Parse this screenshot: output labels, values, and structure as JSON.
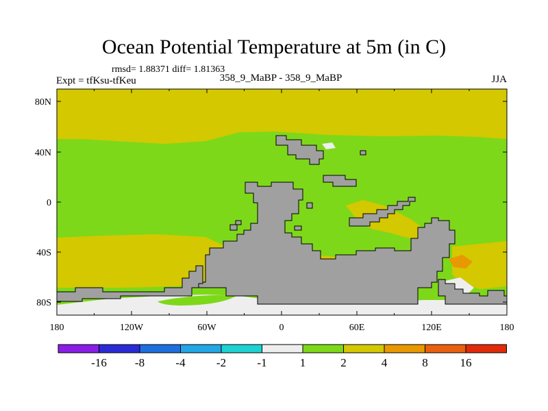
{
  "plot": {
    "title": "Ocean Potential Temperature at 5m (in C)",
    "stats": "rmsd= 1.88371 diff= 1.81363",
    "experiment": "Expt = tfKsu-tfKeu",
    "cases": "358_9_MaBP - 358_9_MaBP",
    "season": "JJA"
  },
  "axes": {
    "x_ticks": [
      "180",
      "120W",
      "60W",
      "0",
      "60E",
      "120E",
      "180"
    ],
    "y_ticks": [
      "80N",
      "40N",
      "0",
      "40S",
      "80S"
    ]
  },
  "colorbar": {
    "labels": [
      "-16",
      "-8",
      "-4",
      "-2",
      "-1",
      "1",
      "2",
      "4",
      "8",
      "16"
    ],
    "colors": [
      "#8a1ee6",
      "#2a2ad6",
      "#1e6ee0",
      "#22a6e6",
      "#1ed2d2",
      "#eeeeee",
      "#7ed81a",
      "#d4c800",
      "#e89800",
      "#e86010",
      "#e02a0a"
    ]
  },
  "map_colors": {
    "level_1_2": "#7ed81a",
    "level_2_4": "#d4c800",
    "level_4_8": "#e89800",
    "near_zero": "#eeeeee",
    "land": "#a0a0a0"
  }
}
